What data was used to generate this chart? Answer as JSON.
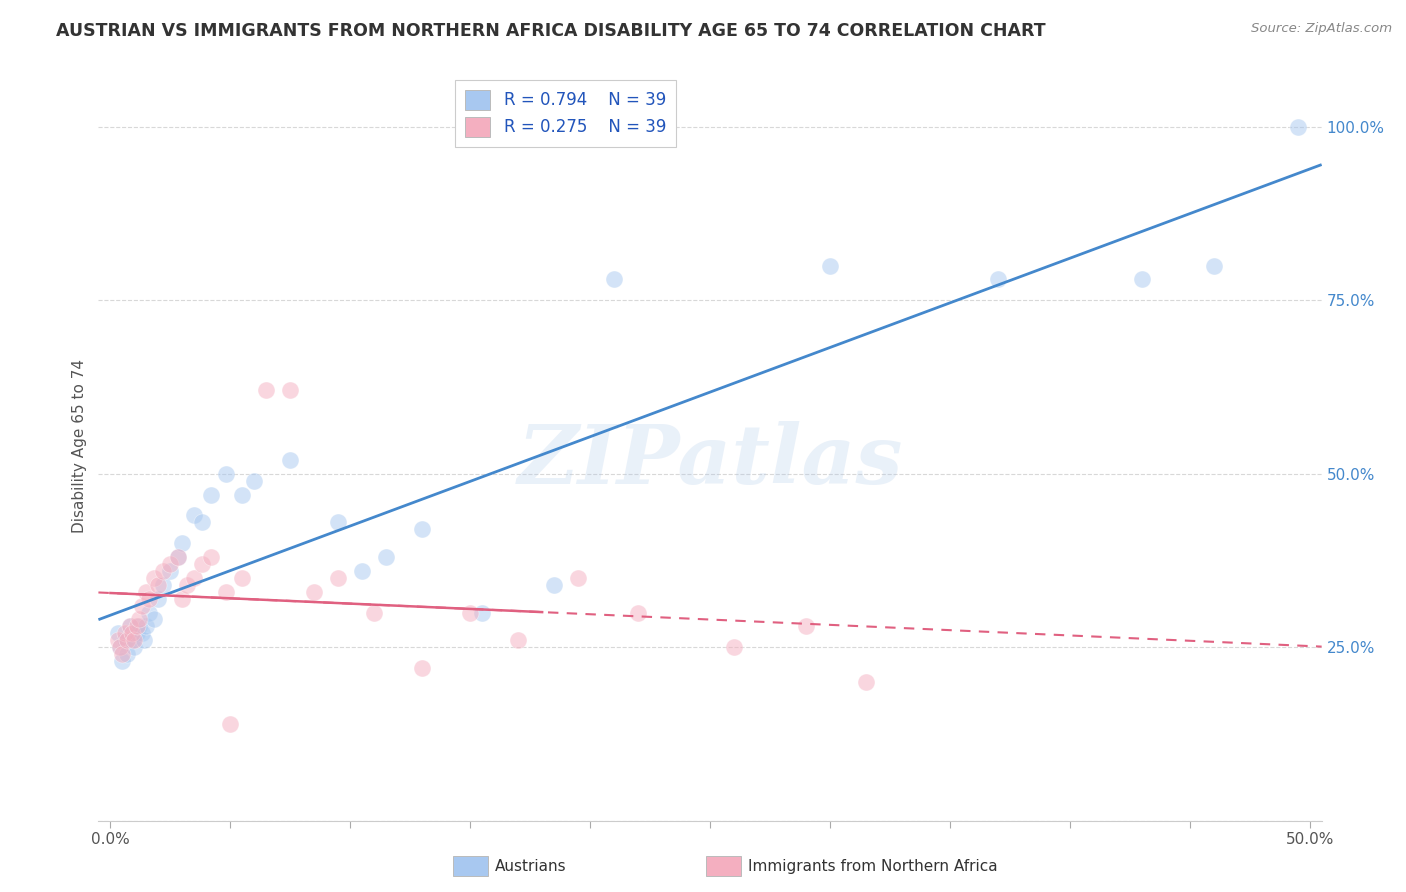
{
  "title": "AUSTRIAN VS IMMIGRANTS FROM NORTHERN AFRICA DISABILITY AGE 65 TO 74 CORRELATION CHART",
  "source": "Source: ZipAtlas.com",
  "ylabel": "Disability Age 65 to 74",
  "legend_label_blue": "Austrians",
  "legend_label_pink": "Immigrants from Northern Africa",
  "x_tick_positions": [
    0.0,
    0.05,
    0.1,
    0.15,
    0.2,
    0.25,
    0.3,
    0.35,
    0.4,
    0.45,
    0.5
  ],
  "x_tick_labels_sparse": {
    "0.0": "0.0%",
    "0.5": "50.0%"
  },
  "y_ticks": [
    0.0,
    0.25,
    0.5,
    0.75,
    1.0
  ],
  "y_tick_labels": [
    "",
    "25.0%",
    "50.0%",
    "75.0%",
    "100.0%"
  ],
  "xlim": [
    -0.005,
    0.505
  ],
  "ylim": [
    0.08,
    1.08
  ],
  "grid_color": "#d8d8d8",
  "background_color": "#ffffff",
  "blue_color": "#a8c8f0",
  "pink_color": "#f4afc0",
  "blue_line_color": "#4488cc",
  "pink_line_color": "#e06080",
  "blue_R": 0.794,
  "blue_N": 39,
  "pink_R": 0.275,
  "pink_N": 39,
  "legend_R_color": "#2255bb",
  "title_fontsize": 12.5,
  "axis_label_fontsize": 11,
  "tick_fontsize": 11,
  "watermark": "ZIPatlas",
  "scatter_size": 150,
  "scatter_alpha": 0.5,
  "scatter_edgewidth": 0.5,
  "blue_scatter_x": [
    0.003,
    0.004,
    0.005,
    0.006,
    0.007,
    0.008,
    0.009,
    0.01,
    0.011,
    0.012,
    0.013,
    0.014,
    0.015,
    0.016,
    0.018,
    0.02,
    0.022,
    0.025,
    0.028,
    0.03,
    0.035,
    0.038,
    0.042,
    0.048,
    0.055,
    0.06,
    0.075,
    0.095,
    0.105,
    0.115,
    0.13,
    0.155,
    0.185,
    0.21,
    0.3,
    0.37,
    0.43,
    0.46,
    0.495
  ],
  "blue_scatter_y": [
    0.27,
    0.25,
    0.23,
    0.26,
    0.24,
    0.28,
    0.26,
    0.25,
    0.27,
    0.28,
    0.27,
    0.26,
    0.28,
    0.3,
    0.29,
    0.32,
    0.34,
    0.36,
    0.38,
    0.4,
    0.44,
    0.43,
    0.47,
    0.5,
    0.47,
    0.49,
    0.52,
    0.43,
    0.36,
    0.38,
    0.42,
    0.3,
    0.34,
    0.78,
    0.8,
    0.78,
    0.78,
    0.8,
    1.0
  ],
  "pink_scatter_x": [
    0.003,
    0.004,
    0.005,
    0.006,
    0.007,
    0.008,
    0.009,
    0.01,
    0.011,
    0.012,
    0.013,
    0.015,
    0.016,
    0.018,
    0.02,
    0.022,
    0.025,
    0.028,
    0.03,
    0.032,
    0.035,
    0.038,
    0.042,
    0.048,
    0.055,
    0.065,
    0.075,
    0.085,
    0.095,
    0.11,
    0.13,
    0.15,
    0.17,
    0.195,
    0.22,
    0.26,
    0.29,
    0.315,
    0.05
  ],
  "pink_scatter_y": [
    0.26,
    0.25,
    0.24,
    0.27,
    0.26,
    0.28,
    0.27,
    0.26,
    0.28,
    0.29,
    0.31,
    0.33,
    0.32,
    0.35,
    0.34,
    0.36,
    0.37,
    0.38,
    0.32,
    0.34,
    0.35,
    0.37,
    0.38,
    0.33,
    0.35,
    0.62,
    0.62,
    0.33,
    0.35,
    0.3,
    0.22,
    0.3,
    0.26,
    0.35,
    0.3,
    0.25,
    0.28,
    0.2,
    0.14
  ]
}
